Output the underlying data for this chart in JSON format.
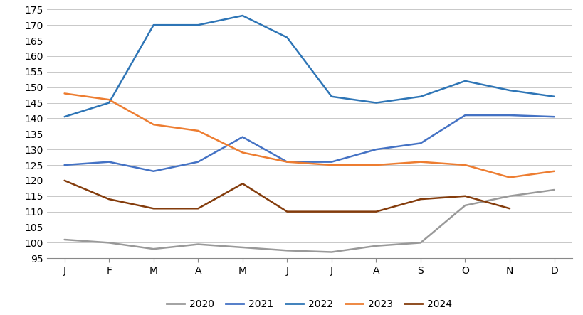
{
  "months": [
    "J",
    "F",
    "M",
    "A",
    "M",
    "J",
    "J",
    "A",
    "S",
    "O",
    "N",
    "D"
  ],
  "series": {
    "2020": [
      101,
      100,
      98,
      99.5,
      98.5,
      97.5,
      97,
      99,
      100,
      112,
      115,
      117
    ],
    "2021": [
      125,
      126,
      123,
      126,
      134,
      126,
      126,
      130,
      132,
      141,
      141,
      140.5
    ],
    "2022": [
      140.5,
      145,
      170,
      170,
      173,
      166,
      147,
      145,
      147,
      152,
      149,
      147
    ],
    "2023": [
      148,
      146,
      138,
      136,
      129,
      126,
      125,
      125,
      126,
      125,
      121,
      123
    ],
    "2024": [
      120,
      114,
      111,
      111,
      119,
      110,
      110,
      110,
      114,
      115,
      111,
      null
    ]
  },
  "colors": {
    "2020": "#999999",
    "2021": "#4472C4",
    "2022": "#2E75B6",
    "2023": "#ED7D31",
    "2024": "#843C0C"
  },
  "ylim": [
    95,
    175
  ],
  "yticks": [
    95,
    100,
    105,
    110,
    115,
    120,
    125,
    130,
    135,
    140,
    145,
    150,
    155,
    160,
    165,
    170,
    175
  ],
  "legend_labels": [
    "2020",
    "2021",
    "2022",
    "2023",
    "2024"
  ],
  "background_color": "#ffffff",
  "grid_color": "#c8c8c8",
  "linewidth": 1.8,
  "figsize": [
    8.2,
    4.43
  ],
  "dpi": 100
}
